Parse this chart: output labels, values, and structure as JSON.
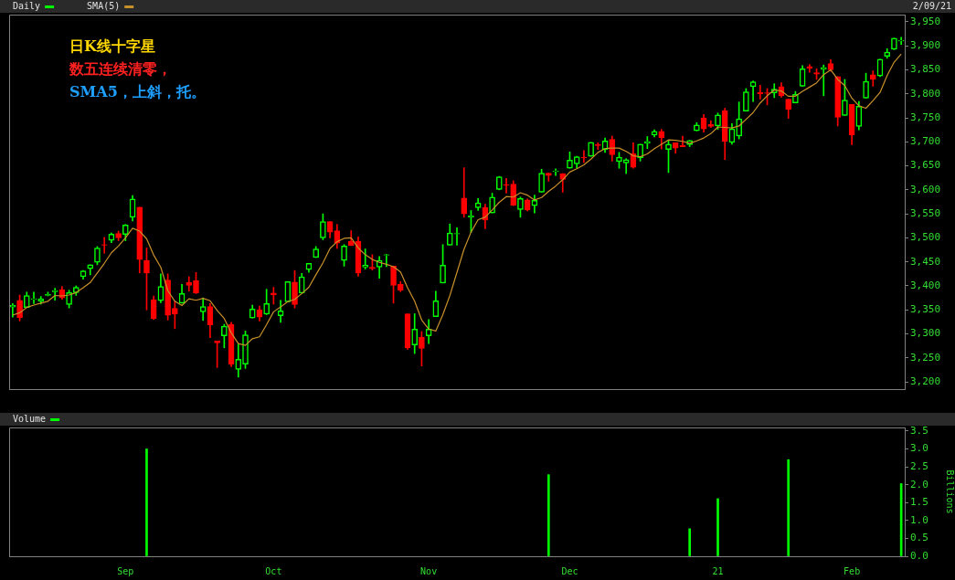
{
  "chart_data": [
    {
      "type": "candlestick",
      "categories": [
        null,
        null,
        null,
        null,
        null,
        null,
        null,
        null,
        null,
        null,
        null,
        null,
        null,
        null,
        null,
        null,
        null,
        null,
        null,
        null,
        null,
        null,
        null,
        null,
        null,
        null,
        null,
        null,
        null,
        null,
        null,
        null,
        null,
        null,
        null,
        null,
        null,
        null,
        null,
        null,
        null,
        null,
        null,
        null,
        null,
        null,
        null,
        null,
        null,
        null,
        null,
        null,
        null,
        null,
        null,
        null,
        null,
        null,
        null,
        null,
        null,
        null,
        null,
        null,
        null,
        null,
        null,
        null,
        null,
        null,
        null,
        null,
        null,
        null,
        null,
        null,
        null,
        null,
        null,
        null,
        null,
        null,
        null,
        null,
        null,
        null,
        null,
        null,
        null,
        null,
        null,
        null,
        null,
        null,
        null,
        null,
        null,
        null,
        null,
        null,
        null,
        null,
        null,
        null,
        null,
        null,
        null,
        null,
        null,
        null,
        null,
        null,
        null,
        null,
        null,
        null,
        null,
        null,
        null,
        null,
        null,
        null,
        null,
        null,
        null,
        null,
        null
      ],
      "series": [
        {
          "name": "Daily",
          "color": "#00ff00",
          "colors": [
            "#00ff00",
            "#ff0000",
            "#00ff00",
            "#00ff00",
            "#00ff00",
            "#00ff00",
            "#00ff00",
            "#ff0000",
            "#00ff00",
            "#00ff00",
            "#00ff00",
            "#00ff00",
            "#00ff00",
            "#ff0000",
            "#00ff00",
            "#ff0000",
            "#00ff00",
            "#00ff00",
            "#ff0000",
            "#ff0000",
            "#ff0000",
            "#00ff00",
            "#ff0000",
            "#ff0000",
            "#00ff00",
            "#ff0000",
            "#ff0000",
            "#00ff00",
            "#ff0000",
            "#ff0000",
            "#00ff00",
            "#ff0000",
            "#00ff00",
            "#00ff00",
            "#00ff00",
            "#ff0000",
            "#00ff00",
            "#ff0000",
            "#00ff00",
            "#00ff00",
            "#ff0000",
            "#00ff00",
            "#00ff00",
            "#00ff00",
            "#00ff00",
            "#ff0000",
            "#ff0000",
            "#00ff00",
            "#ff0000",
            "#ff0000",
            "#00ff00",
            "#ff0000",
            "#00ff00",
            "#00ff00",
            "#ff0000",
            "#ff0000",
            "#ff0000",
            "#00ff00",
            "#ff0000",
            "#00ff00",
            "#00ff00",
            "#00ff00",
            "#00ff00",
            "#00ff00",
            "#ff0000",
            "#00ff00",
            "#00ff00",
            "#ff0000",
            "#00ff00",
            "#00ff00",
            "#ff0000",
            "#ff0000",
            "#00ff00",
            "#ff0000",
            "#00ff00",
            "#00ff00",
            "#ff0000",
            "#00ff00",
            "#ff0000",
            "#00ff00",
            "#00ff00",
            "#ff0000",
            "#00ff00",
            "#ff0000",
            "#00ff00",
            "#ff0000",
            "#00ff00",
            "#00ff00",
            "#ff0000",
            "#00ff00",
            "#00ff00",
            "#00ff00",
            "#ff0000",
            "#00ff00",
            "#ff0000",
            "#ff0000",
            "#00ff00",
            "#00ff00",
            "#ff0000",
            "#ff0000",
            "#00ff00",
            "#ff0000",
            "#00ff00",
            "#00ff00",
            "#00ff00",
            "#00ff00",
            "#ff0000",
            "#ff0000",
            "#00ff00",
            "#ff0000",
            "#ff0000",
            "#00ff00",
            "#00ff00",
            "#ff0000",
            "#ff0000",
            "#00ff00",
            "#ff0000",
            "#ff0000",
            "#00ff00",
            "#ff0000",
            "#00ff00",
            "#00ff00",
            "#ff0000",
            "#00ff00",
            "#00ff00",
            "#00ff00",
            "#00ff00"
          ],
          "ohlc": [
            [
              3356,
              3363,
              3335,
              3360
            ],
            [
              3370,
              3381,
              3327,
              3334
            ],
            [
              3355,
              3387,
              3355,
              3380
            ],
            [
              3372,
              3387,
              3363,
              3373
            ],
            [
              3368,
              3378,
              3362,
              3373
            ],
            [
              3380,
              3387,
              3379,
              3382
            ],
            [
              3388,
              3395,
              3370,
              3390
            ],
            [
              3392,
              3399,
              3372,
              3375
            ],
            [
              3361,
              3391,
              3354,
              3386
            ],
            [
              3386,
              3400,
              3380,
              3397
            ],
            [
              3419,
              3432,
              3414,
              3431
            ],
            [
              3436,
              3444,
              3423,
              3444
            ],
            [
              3449,
              3482,
              3444,
              3479
            ],
            [
              3486,
              3501,
              3468,
              3485
            ],
            [
              3495,
              3510,
              3490,
              3508
            ],
            [
              3509,
              3514,
              3494,
              3500
            ],
            [
              3507,
              3528,
              3494,
              3527
            ],
            [
              3543,
              3588,
              3535,
              3581
            ],
            [
              3564,
              3564,
              3427,
              3455
            ],
            [
              3453,
              3479,
              3350,
              3427
            ],
            [
              3371,
              3379,
              3330,
              3332
            ],
            [
              3369,
              3425,
              3365,
              3399
            ],
            [
              3412,
              3425,
              3329,
              3339
            ],
            [
              3353,
              3368,
              3311,
              3341
            ],
            [
              3364,
              3403,
              3364,
              3384
            ],
            [
              3407,
              3419,
              3389,
              3401
            ],
            [
              3411,
              3428,
              3384,
              3385
            ],
            [
              3346,
              3375,
              3328,
              3357
            ],
            [
              3357,
              3363,
              3292,
              3319
            ],
            [
              3285,
              3285,
              3230,
              3281
            ],
            [
              3296,
              3320,
              3271,
              3316
            ],
            [
              3320,
              3324,
              3232,
              3237
            ],
            [
              3226,
              3279,
              3210,
              3247
            ],
            [
              3237,
              3306,
              3228,
              3298
            ],
            [
              3333,
              3360,
              3333,
              3352
            ],
            [
              3350,
              3358,
              3327,
              3335
            ],
            [
              3341,
              3393,
              3340,
              3363
            ],
            [
              3385,
              3397,
              3362,
              3381
            ],
            [
              3338,
              3370,
              3324,
              3348
            ],
            [
              3367,
              3409,
              3367,
              3409
            ],
            [
              3408,
              3432,
              3354,
              3361
            ],
            [
              3385,
              3426,
              3385,
              3419
            ],
            [
              3434,
              3447,
              3428,
              3447
            ],
            [
              3459,
              3482,
              3459,
              3477
            ],
            [
              3500,
              3550,
              3496,
              3534
            ],
            [
              3534,
              3534,
              3500,
              3512
            ],
            [
              3515,
              3528,
              3478,
              3489
            ],
            [
              3453,
              3486,
              3441,
              3483
            ],
            [
              3493,
              3515,
              3484,
              3484
            ],
            [
              3493,
              3502,
              3420,
              3427
            ],
            [
              3439,
              3477,
              3435,
              3443
            ],
            [
              3439,
              3465,
              3433,
              3436
            ],
            [
              3439,
              3461,
              3416,
              3453
            ],
            [
              3464,
              3466,
              3440,
              3465
            ],
            [
              3441,
              3441,
              3364,
              3401
            ],
            [
              3403,
              3409,
              3388,
              3391
            ],
            [
              3342,
              3342,
              3268,
              3271
            ],
            [
              3277,
              3342,
              3259,
              3310
            ],
            [
              3293,
              3305,
              3233,
              3270
            ],
            [
              3296,
              3330,
              3280,
              3310
            ],
            [
              3336,
              3389,
              3336,
              3369
            ],
            [
              3406,
              3486,
              3406,
              3443
            ],
            [
              3485,
              3529,
              3485,
              3510
            ],
            [
              3508,
              3521,
              3485,
              3509
            ],
            [
              3583,
              3646,
              3543,
              3550
            ],
            [
              3543,
              3557,
              3511,
              3546
            ],
            [
              3563,
              3582,
              3557,
              3573
            ],
            [
              3563,
              3570,
              3519,
              3537
            ],
            [
              3552,
              3593,
              3552,
              3585
            ],
            [
              3601,
              3628,
              3600,
              3627
            ],
            [
              3611,
              3624,
              3593,
              3610
            ],
            [
              3612,
              3619,
              3567,
              3568
            ],
            [
              3559,
              3585,
              3543,
              3582
            ],
            [
              3579,
              3581,
              3556,
              3558
            ],
            [
              3567,
              3589,
              3552,
              3578
            ],
            [
              3595,
              3643,
              3595,
              3635
            ],
            [
              3635,
              3635,
              3618,
              3630
            ],
            [
              3638,
              3644,
              3630,
              3639
            ],
            [
              3634,
              3634,
              3595,
              3622
            ],
            [
              3645,
              3679,
              3645,
              3662
            ],
            [
              3654,
              3670,
              3645,
              3669
            ],
            [
              3668,
              3682,
              3657,
              3667
            ],
            [
              3670,
              3699,
              3670,
              3699
            ],
            [
              3694,
              3698,
              3684,
              3692
            ],
            [
              3684,
              3708,
              3678,
              3702
            ],
            [
              3705,
              3712,
              3660,
              3673
            ],
            [
              3659,
              3678,
              3645,
              3668
            ],
            [
              3656,
              3665,
              3634,
              3663
            ],
            [
              3675,
              3698,
              3645,
              3647
            ],
            [
              3667,
              3695,
              3660,
              3695
            ],
            [
              3697,
              3711,
              3686,
              3701
            ],
            [
              3714,
              3725,
              3710,
              3722
            ],
            [
              3722,
              3726,
              3685,
              3709
            ],
            [
              3684,
              3703,
              3636,
              3695
            ],
            [
              3698,
              3698,
              3676,
              3687
            ],
            [
              3693,
              3712,
              3690,
              3690
            ],
            [
              3694,
              3703,
              3690,
              3703
            ],
            [
              3723,
              3740,
              3723,
              3735
            ],
            [
              3750,
              3757,
              3720,
              3727
            ],
            [
              3736,
              3744,
              3730,
              3732
            ],
            [
              3733,
              3760,
              3726,
              3756
            ],
            [
              3765,
              3770,
              3663,
              3701
            ],
            [
              3699,
              3738,
              3695,
              3727
            ],
            [
              3712,
              3783,
              3706,
              3748
            ],
            [
              3764,
              3811,
              3764,
              3804
            ],
            [
              3815,
              3827,
              3784,
              3825
            ],
            [
              3803,
              3818,
              3789,
              3800
            ],
            [
              3802,
              3811,
              3777,
              3801
            ],
            [
              3802,
              3821,
              3792,
              3810
            ],
            [
              3815,
              3823,
              3793,
              3796
            ],
            [
              3789,
              3789,
              3749,
              3768
            ],
            [
              3781,
              3805,
              3781,
              3799
            ],
            [
              3816,
              3859,
              3816,
              3852
            ],
            [
              3857,
              3861,
              3845,
              3853
            ],
            [
              3844,
              3852,
              3830,
              3841
            ],
            [
              3851,
              3860,
              3796,
              3855
            ],
            [
              3863,
              3871,
              3847,
              3850
            ],
            [
              3836,
              3836,
              3733,
              3751
            ],
            [
              3755,
              3830,
              3755,
              3787
            ],
            [
              3778,
              3778,
              3694,
              3714
            ],
            [
              3732,
              3784,
              3725,
              3774
            ],
            [
              3791,
              3843,
              3791,
              3826
            ],
            [
              3840,
              3848,
              3816,
              3830
            ],
            [
              3837,
              3872,
              3836,
              3872
            ],
            [
              3878,
              3894,
              3874,
              3887
            ],
            [
              3893,
              3916,
              3892,
              3916
            ],
            [
              3910,
              3918,
              3903,
              3911
            ]
          ]
        },
        {
          "name": "SMA(5)",
          "type": "line",
          "color": "#c8902a",
          "values": [
            3339,
            3344,
            3355,
            3360,
            3364,
            3368,
            3380,
            3379,
            3381,
            3386,
            3396,
            3407,
            3427,
            3447,
            3469,
            3483,
            3500,
            3520,
            3514,
            3498,
            3464,
            3439,
            3390,
            3368,
            3359,
            3373,
            3370,
            3374,
            3369,
            3349,
            3332,
            3302,
            3280,
            3276,
            3290,
            3294,
            3319,
            3346,
            3356,
            3367,
            3372,
            3384,
            3397,
            3423,
            3448,
            3478,
            3492,
            3499,
            3500,
            3479,
            3465,
            3455,
            3449,
            3445,
            3440,
            3429,
            3396,
            3368,
            3329,
            3310,
            3306,
            3340,
            3380,
            3428,
            3476,
            3512,
            3538,
            3543,
            3558,
            3574,
            3586,
            3585,
            3594,
            3589,
            3579,
            3584,
            3597,
            3608,
            3621,
            3637,
            3644,
            3652,
            3664,
            3678,
            3686,
            3687,
            3687,
            3680,
            3671,
            3669,
            3675,
            3686,
            3695,
            3704,
            3703,
            3701,
            3697,
            3702,
            3708,
            3717,
            3731,
            3730,
            3729,
            3733,
            3747,
            3761,
            3781,
            3796,
            3808,
            3806,
            3795,
            3795,
            3805,
            3814,
            3823,
            3840,
            3850,
            3830,
            3817,
            3791,
            3775,
            3770,
            3786,
            3803,
            3838,
            3866,
            3883
          ]
        }
      ],
      "ylim": [
        3185,
        3965
      ],
      "yticks": [
        {
          "value": 3200,
          "label": "3,200"
        },
        {
          "value": 3250,
          "label": "3,250"
        },
        {
          "value": 3300,
          "label": "3,300"
        },
        {
          "value": 3350,
          "label": "3,350"
        },
        {
          "value": 3400,
          "label": "3,400"
        },
        {
          "value": 3450,
          "label": "3,450"
        },
        {
          "value": 3500,
          "label": "3,500"
        },
        {
          "value": 3550,
          "label": "3,550"
        },
        {
          "value": 3600,
          "label": "3,600"
        },
        {
          "value": 3650,
          "label": "3,650"
        },
        {
          "value": 3700,
          "label": "3,700"
        },
        {
          "value": 3750,
          "label": "3,750"
        },
        {
          "value": 3800,
          "label": "3,800"
        },
        {
          "value": 3850,
          "label": "3,850"
        },
        {
          "value": 3900,
          "label": "3,900"
        },
        {
          "value": 3950,
          "label": "3,950"
        }
      ],
      "grid": false,
      "legend": "top left",
      "marker": "none",
      "annotations": [
        "日K线十字星",
        "数五连续清零，",
        "SMA5，上斜，托。",
        "2/09/21"
      ]
    },
    {
      "type": "bar",
      "categories": [
        null,
        null,
        null,
        null,
        null,
        null,
        null,
        null,
        null,
        null,
        null,
        null,
        null,
        null,
        null,
        null,
        "Sep",
        null,
        null,
        null,
        null,
        null,
        null,
        null,
        null,
        null,
        null,
        null,
        null,
        null,
        null,
        null,
        null,
        null,
        null,
        null,
        null,
        "Oct",
        null,
        null,
        null,
        null,
        null,
        null,
        null,
        null,
        null,
        null,
        null,
        null,
        null,
        null,
        null,
        null,
        null,
        null,
        null,
        null,
        null,
        "Nov",
        null,
        null,
        null,
        null,
        null,
        null,
        null,
        null,
        null,
        null,
        null,
        null,
        null,
        null,
        null,
        null,
        null,
        null,
        null,
        "Dec",
        null,
        null,
        null,
        null,
        null,
        null,
        null,
        null,
        null,
        null,
        null,
        null,
        null,
        null,
        null,
        null,
        null,
        null,
        null,
        null,
        "21",
        null,
        null,
        null,
        null,
        null,
        null,
        null,
        null,
        null,
        null,
        null,
        null,
        null,
        null,
        null,
        null,
        null,
        null,
        "Feb",
        null,
        null,
        null,
        null,
        null,
        null,
        null
      ],
      "series": [
        {
          "name": "Volume",
          "color": "#00ff00",
          "values": [
            null,
            null,
            null,
            null,
            null,
            null,
            null,
            null,
            null,
            null,
            null,
            null,
            null,
            null,
            null,
            null,
            null,
            null,
            null,
            3.0,
            null,
            null,
            null,
            null,
            null,
            null,
            null,
            null,
            null,
            null,
            null,
            null,
            null,
            null,
            null,
            null,
            null,
            null,
            null,
            null,
            null,
            null,
            null,
            null,
            null,
            null,
            null,
            null,
            null,
            null,
            null,
            null,
            null,
            null,
            null,
            null,
            null,
            null,
            null,
            null,
            null,
            null,
            null,
            null,
            null,
            null,
            null,
            null,
            null,
            null,
            null,
            null,
            null,
            null,
            null,
            null,
            2.28,
            null,
            null,
            null,
            null,
            null,
            null,
            null,
            null,
            null,
            null,
            null,
            null,
            null,
            null,
            null,
            null,
            null,
            null,
            null,
            0.77,
            null,
            null,
            null,
            1.61,
            null,
            null,
            null,
            null,
            null,
            null,
            null,
            null,
            null,
            2.7,
            null,
            null,
            null,
            null,
            null,
            null,
            null,
            null,
            null,
            null,
            null,
            null,
            null,
            null,
            null,
            2.03
          ]
        }
      ],
      "ylim": [
        0,
        3.6
      ],
      "yticks": [
        {
          "value": 0,
          "label": "0.0"
        },
        {
          "value": 0.5,
          "label": "0.5"
        },
        {
          "value": 1,
          "label": "1.0"
        },
        {
          "value": 1.5,
          "label": "1.5"
        },
        {
          "value": 2,
          "label": "2.0"
        },
        {
          "value": 2.5,
          "label": "2.5"
        },
        {
          "value": 3,
          "label": "3.0"
        },
        {
          "value": 3.5,
          "label": "3.5"
        }
      ],
      "ylabel": "Billions",
      "grid": false,
      "legend": "top left"
    }
  ]
}
